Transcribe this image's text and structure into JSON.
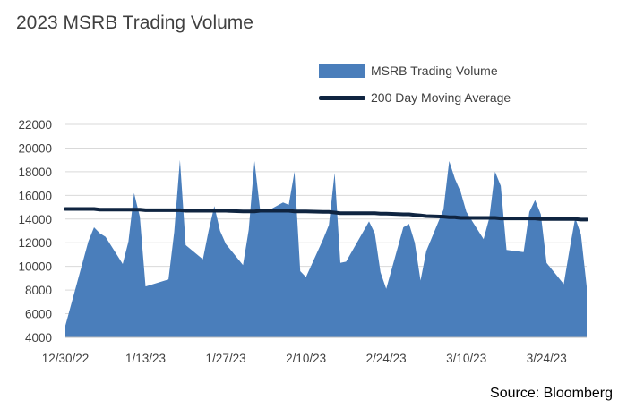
{
  "chart_data": {
    "type": "area",
    "title": "2023 MSRB Trading Volume",
    "xlabel": "",
    "ylabel": "",
    "ylim": [
      4000,
      22000
    ],
    "yticks": [
      4000,
      6000,
      8000,
      10000,
      12000,
      14000,
      16000,
      18000,
      20000,
      22000
    ],
    "grid": true,
    "legend_position": "top-right",
    "x_tick_labels": [
      "12/30/22",
      "1/13/23",
      "1/27/23",
      "2/10/23",
      "2/24/23",
      "3/10/23",
      "3/24/23"
    ],
    "x_tick_dates": [
      "2022-12-30",
      "2023-01-13",
      "2023-01-27",
      "2023-02-10",
      "2023-02-24",
      "2023-03-10",
      "2023-03-24"
    ],
    "x": [
      "2022-12-30",
      "2023-01-03",
      "2023-01-04",
      "2023-01-05",
      "2023-01-06",
      "2023-01-09",
      "2023-01-10",
      "2023-01-11",
      "2023-01-12",
      "2023-01-13",
      "2023-01-17",
      "2023-01-18",
      "2023-01-19",
      "2023-01-20",
      "2023-01-23",
      "2023-01-24",
      "2023-01-25",
      "2023-01-26",
      "2023-01-27",
      "2023-01-30",
      "2023-01-31",
      "2023-02-01",
      "2023-02-02",
      "2023-02-03",
      "2023-02-06",
      "2023-02-07",
      "2023-02-08",
      "2023-02-09",
      "2023-02-10",
      "2023-02-13",
      "2023-02-14",
      "2023-02-15",
      "2023-02-16",
      "2023-02-17",
      "2023-02-21",
      "2023-02-22",
      "2023-02-23",
      "2023-02-24",
      "2023-02-27",
      "2023-02-28",
      "2023-03-01",
      "2023-03-02",
      "2023-03-03",
      "2023-03-06",
      "2023-03-07",
      "2023-03-08",
      "2023-03-09",
      "2023-03-10",
      "2023-03-13",
      "2023-03-14",
      "2023-03-15",
      "2023-03-16",
      "2023-03-17",
      "2023-03-20",
      "2023-03-21",
      "2023-03-22",
      "2023-03-23",
      "2023-03-24",
      "2023-03-27",
      "2023-03-28",
      "2023-03-29",
      "2023-03-30",
      "2023-03-31"
    ],
    "series": [
      {
        "name": "MSRB Trading Volume",
        "color": "#4a7ebb",
        "values": [
          5000,
          12100,
          13300,
          12800,
          12500,
          10200,
          12100,
          16200,
          14200,
          8300,
          8900,
          12900,
          19000,
          11800,
          10600,
          13000,
          15100,
          13000,
          11900,
          10100,
          13100,
          18900,
          14700,
          14600,
          15400,
          15200,
          18000,
          9600,
          9100,
          12300,
          13500,
          17900,
          10300,
          10400,
          13800,
          12800,
          9500,
          8100,
          13300,
          13600,
          12000,
          8800,
          11300,
          14800,
          18900,
          17400,
          16300,
          14600,
          12300,
          14100,
          18000,
          16800,
          11400,
          11200,
          14600,
          15600,
          14400,
          10300,
          8500,
          11400,
          14100,
          12700,
          8300
        ]
      },
      {
        "name": "200 Day Moving Average",
        "color": "#0f2440",
        "values": [
          14850,
          14850,
          14850,
          14800,
          14800,
          14800,
          14800,
          14800,
          14800,
          14750,
          14750,
          14750,
          14750,
          14700,
          14700,
          14700,
          14700,
          14700,
          14700,
          14650,
          14650,
          14650,
          14700,
          14700,
          14700,
          14700,
          14650,
          14650,
          14650,
          14600,
          14600,
          14550,
          14500,
          14500,
          14500,
          14500,
          14450,
          14450,
          14400,
          14400,
          14350,
          14300,
          14250,
          14200,
          14150,
          14150,
          14100,
          14100,
          14100,
          14100,
          14100,
          14050,
          14050,
          14050,
          14050,
          14050,
          14000,
          14000,
          14000,
          14000,
          14000,
          13950,
          13950
        ]
      }
    ]
  },
  "source": "Source: Bloomberg"
}
